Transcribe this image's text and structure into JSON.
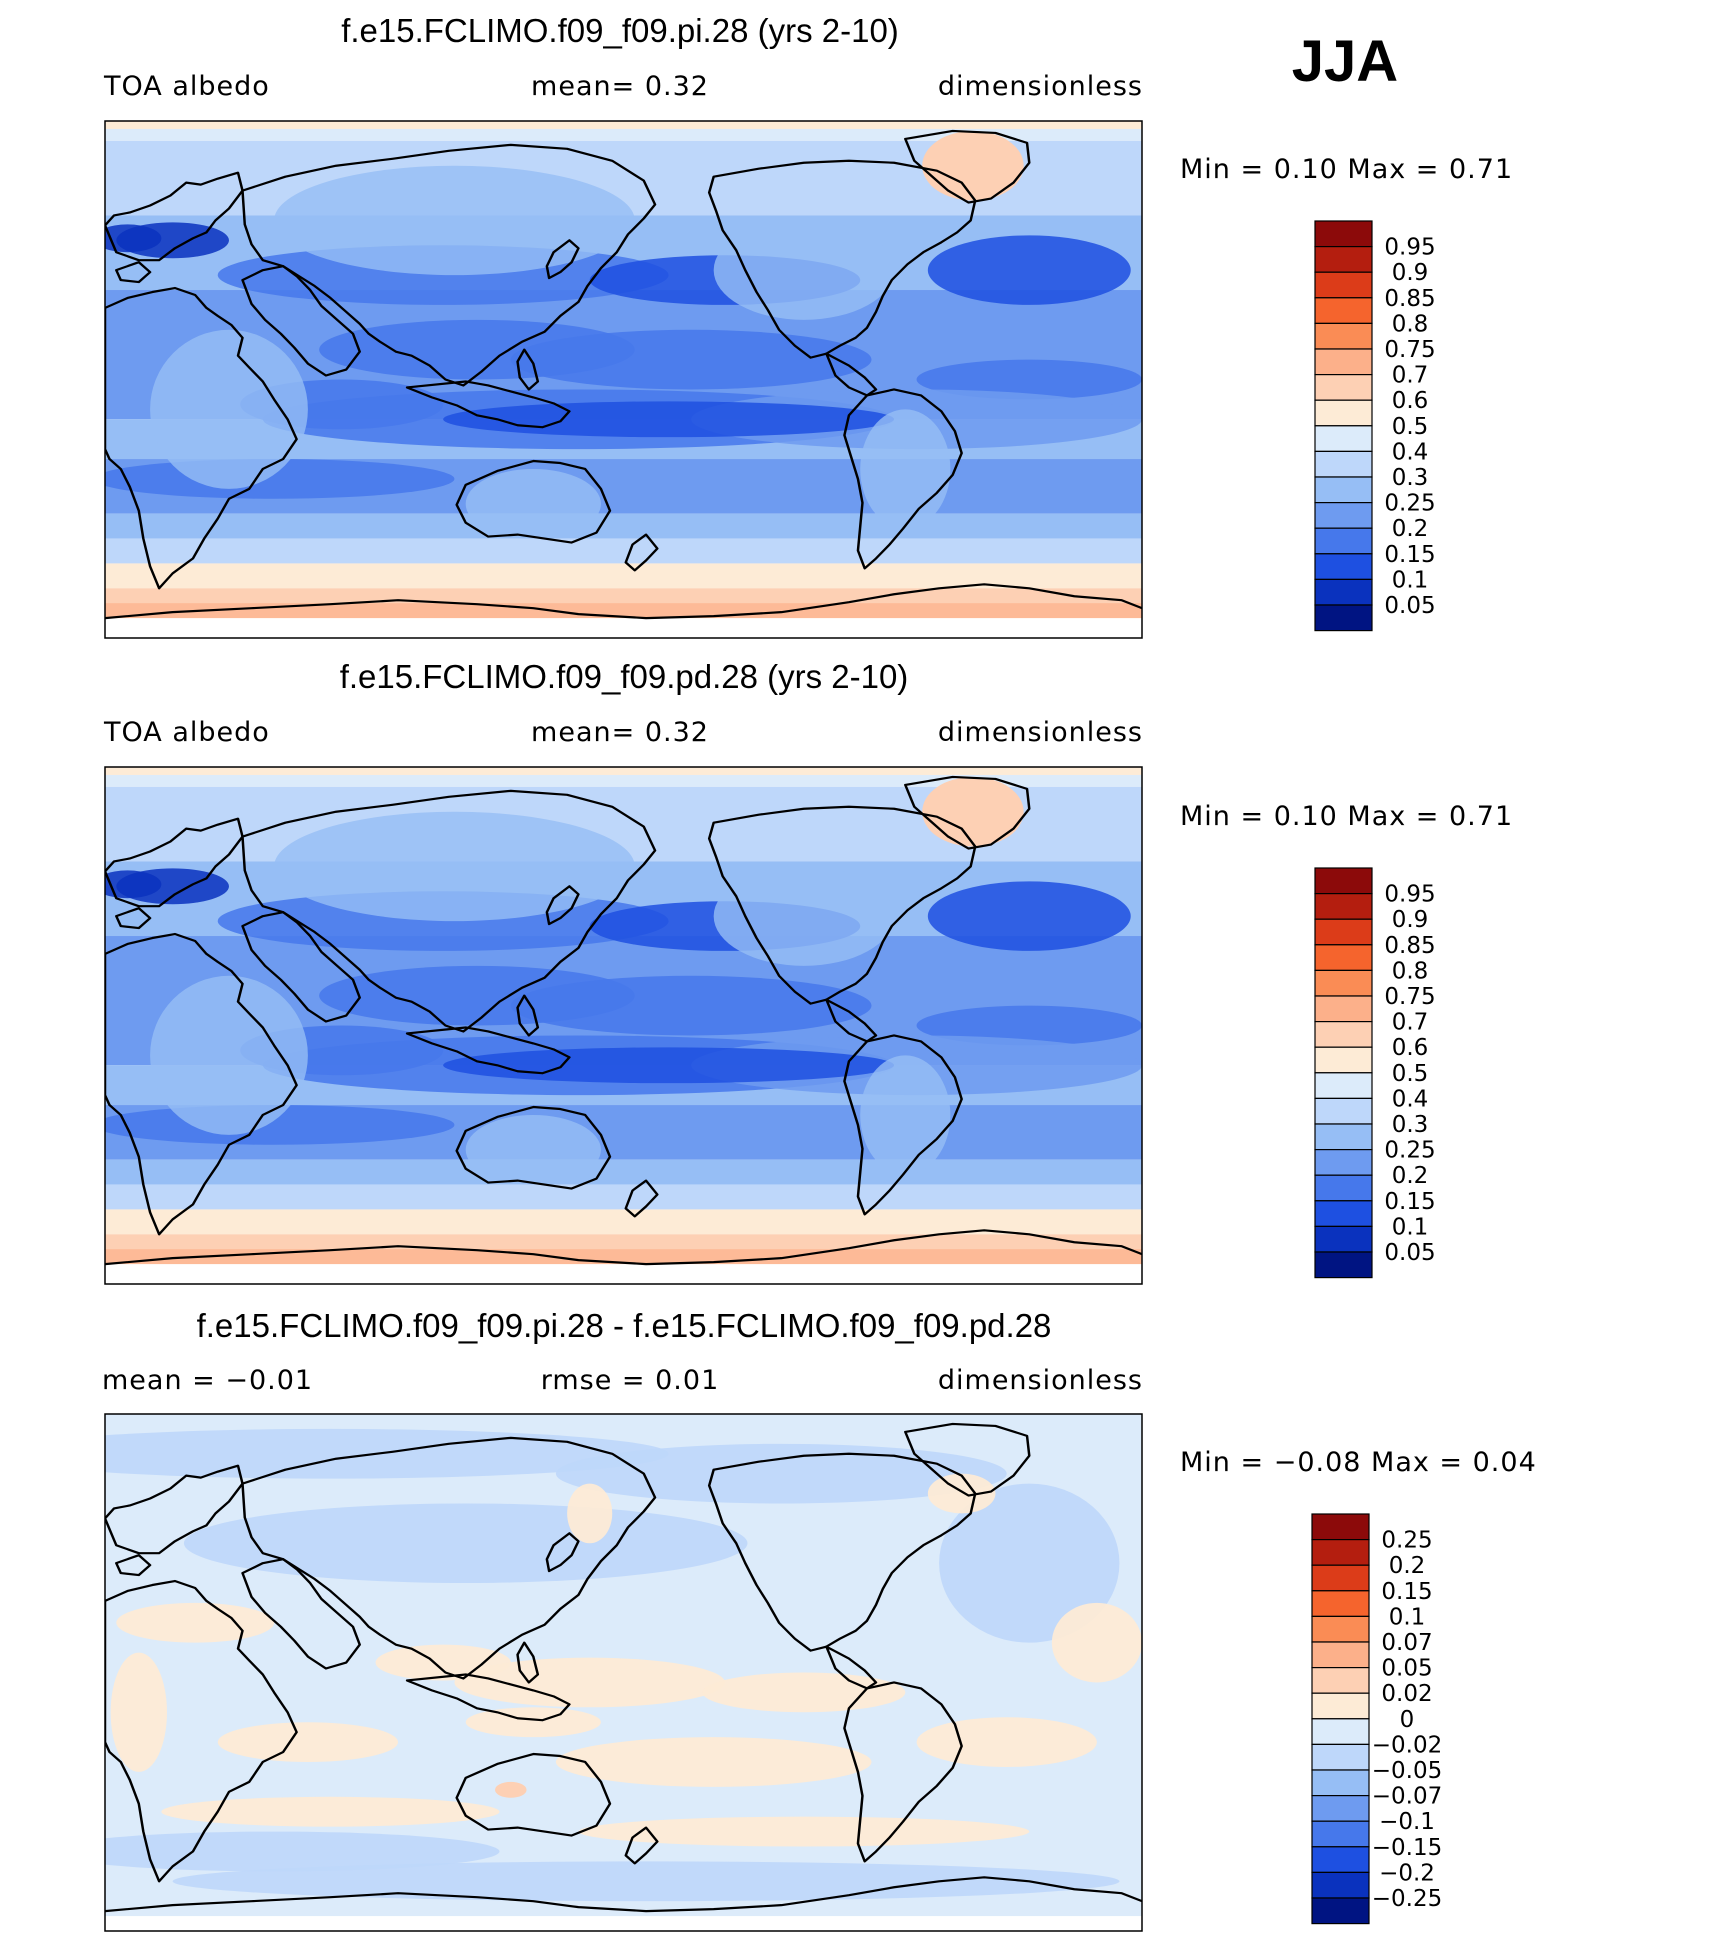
{
  "season": "JJA",
  "panels": [
    {
      "title": "f.e15.FCLIMO.f09_f09.pi.28 (yrs 2-10)",
      "left_label": "TOA  albedo",
      "mid_label": "mean=     0.32",
      "right_label": "dimensionless",
      "minmax": "Min  =      0.10  Max  =      0.71",
      "colorbar_labels": [
        "0.95",
        "0.9",
        "0.85",
        "0.8",
        "0.75",
        "0.7",
        "0.6",
        "0.5",
        "0.4",
        "0.3",
        "0.25",
        "0.2",
        "0.15",
        "0.1",
        "0.05"
      ],
      "colorbar_colors": [
        "#8c0a0a",
        "#b41e0f",
        "#dc3c19",
        "#f5642d",
        "#fa8c55",
        "#fcb08a",
        "#fdd0b4",
        "#fdebd6",
        "#dcebfa",
        "#bed7fa",
        "#96bef5",
        "#6e9bf0",
        "#4678eb",
        "#1e50e1",
        "#0a32be",
        "#001482"
      ],
      "field": "albedo"
    },
    {
      "title": "f.e15.FCLIMO.f09_f09.pd.28 (yrs 2-10)",
      "left_label": "TOA  albedo",
      "mid_label": "mean=     0.32",
      "right_label": "dimensionless",
      "minmax": "Min  =      0.10  Max  =      0.71",
      "colorbar_labels": [
        "0.95",
        "0.9",
        "0.85",
        "0.8",
        "0.75",
        "0.7",
        "0.6",
        "0.5",
        "0.4",
        "0.3",
        "0.25",
        "0.2",
        "0.15",
        "0.1",
        "0.05"
      ],
      "colorbar_colors": [
        "#8c0a0a",
        "#b41e0f",
        "#dc3c19",
        "#f5642d",
        "#fa8c55",
        "#fcb08a",
        "#fdd0b4",
        "#fdebd6",
        "#dcebfa",
        "#bed7fa",
        "#96bef5",
        "#6e9bf0",
        "#4678eb",
        "#1e50e1",
        "#0a32be",
        "#001482"
      ],
      "field": "albedo"
    },
    {
      "title": "f.e15.FCLIMO.f09_f09.pi.28 - f.e15.FCLIMO.f09_f09.pd.28",
      "left_label": "mean  =    −0.01",
      "mid_label": "rmse  =     0.01",
      "right_label": "dimensionless",
      "minmax": "Min  =   −0.08  Max  =     0.04",
      "colorbar_labels": [
        "0.25",
        "0.2",
        "0.15",
        "0.1",
        "0.07",
        "0.05",
        "0.02",
        "0",
        "−0.02",
        "−0.05",
        "−0.07",
        "−0.1",
        "−0.15",
        "−0.2",
        "−0.25"
      ],
      "colorbar_colors": [
        "#8c0a0a",
        "#b41e0f",
        "#dc3c19",
        "#f5642d",
        "#fa8c55",
        "#fcb08a",
        "#fdd0b4",
        "#fdebd6",
        "#dcebfa",
        "#bed7fa",
        "#96bef5",
        "#6e9bf0",
        "#4678eb",
        "#1e50e1",
        "#0a32be",
        "#001482"
      ],
      "field": "difference"
    }
  ]
}
